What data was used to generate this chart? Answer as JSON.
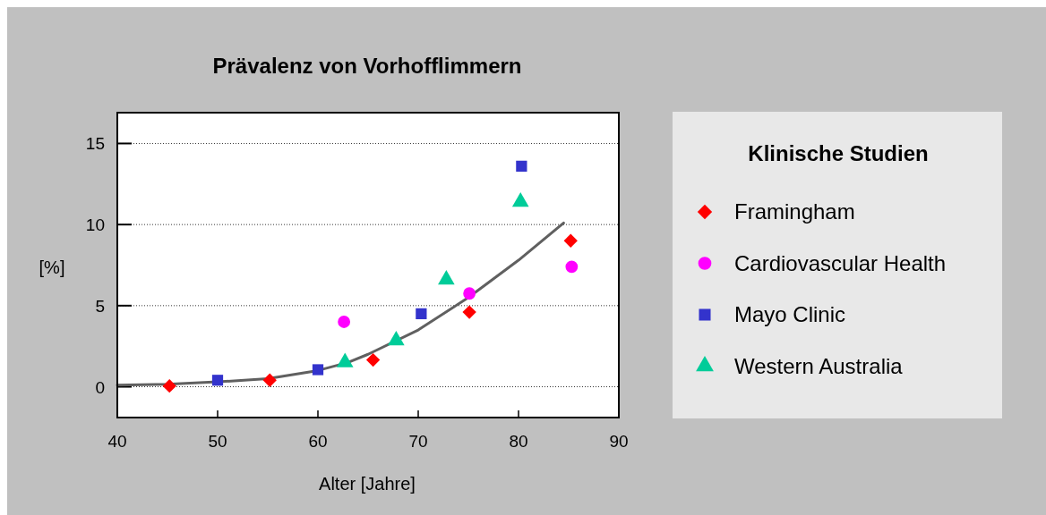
{
  "chart_data": {
    "type": "scatter",
    "title": "Prävalenz  von Vorhofflimmern",
    "xlabel": "Alter  [Jahre]",
    "ylabel": "[%]",
    "legend_title": "Klinische Studien",
    "legend": "right",
    "xlim": [
      40,
      90
    ],
    "xticks": [
      40,
      50,
      60,
      70,
      80,
      90
    ],
    "ylim": [
      -1.9,
      16.9
    ],
    "yticks": [
      0,
      5,
      10,
      15
    ],
    "grid": "y",
    "series": [
      {
        "type": "line",
        "color": "#606060",
        "x": [
          40,
          45,
          50,
          55,
          60,
          63,
          65,
          70,
          75,
          80,
          84.5
        ],
        "values": [
          0.1,
          0.15,
          0.3,
          0.5,
          1.0,
          1.5,
          2.0,
          3.5,
          5.5,
          7.8,
          10.1
        ]
      },
      {
        "name": "Framingham",
        "color": "#ff0000",
        "marker": "diamond",
        "x": [
          45.2,
          55.2,
          65.5,
          75.1,
          85.2
        ],
        "values": [
          0.05,
          0.4,
          1.65,
          4.6,
          9.0
        ]
      },
      {
        "name": "Cardiovascular Health",
        "color": "#ff00ff",
        "marker": "circle",
        "x": [
          62.6,
          75.1,
          85.3
        ],
        "values": [
          4.0,
          5.75,
          7.4
        ]
      },
      {
        "name": "Mayo Clinic",
        "color": "#3333cc",
        "marker": "square",
        "x": [
          50,
          60,
          70.3,
          80.3
        ],
        "values": [
          0.4,
          1.05,
          4.5,
          13.6
        ]
      },
      {
        "name": "Western Australia",
        "color": "#00cc99",
        "marker": "triangle",
        "x": [
          62.7,
          67.8,
          72.8,
          80.2
        ],
        "values": [
          1.5,
          2.85,
          6.6,
          11.4
        ]
      }
    ]
  }
}
